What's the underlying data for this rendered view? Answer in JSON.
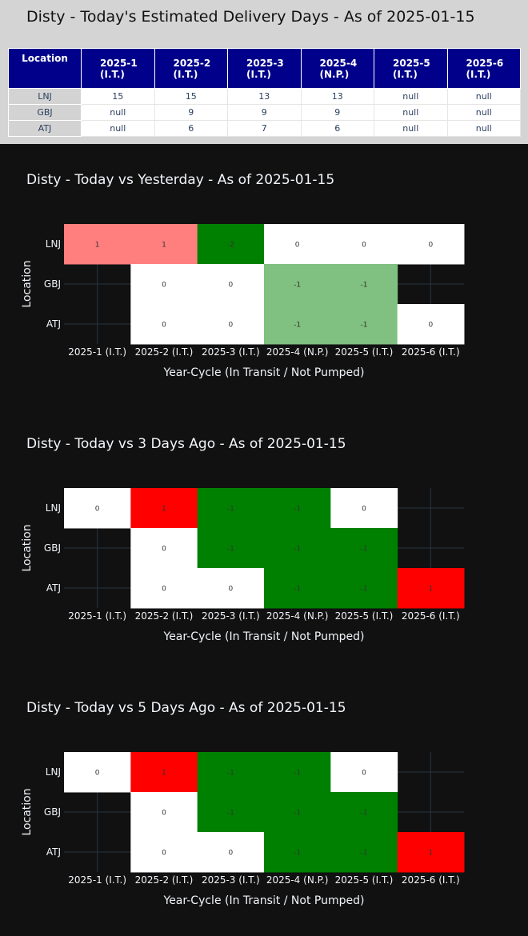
{
  "estimated_table": {
    "title": "Disty - Today's Estimated Delivery Days - As of 2025-01-15",
    "location_header": "Location",
    "columns": [
      {
        "line1": "2025-1",
        "line2": "(I.T.)"
      },
      {
        "line1": "2025-2",
        "line2": "(I.T.)"
      },
      {
        "line1": "2025-3",
        "line2": "(I.T.)"
      },
      {
        "line1": "2025-4",
        "line2": "(N.P.)"
      },
      {
        "line1": "2025-5",
        "line2": "(I.T.)"
      },
      {
        "line1": "2025-6",
        "line2": "(I.T.)"
      }
    ],
    "rows": [
      {
        "location": "LNJ",
        "values": [
          "15",
          "15",
          "13",
          "13",
          "null",
          "null"
        ]
      },
      {
        "location": "GBJ",
        "values": [
          "null",
          "9",
          "9",
          "9",
          "null",
          "null"
        ]
      },
      {
        "location": "ATJ",
        "values": [
          "null",
          "6",
          "7",
          "6",
          "null",
          "null"
        ]
      }
    ]
  },
  "chart_data": [
    {
      "type": "heatmap",
      "title": "Disty - Today vs Yesterday - As of 2025-01-15",
      "xlabel": "Year-Cycle (In Transit / Not Pumped)",
      "ylabel": "Location",
      "x": [
        "2025-1 (I.T.)",
        "2025-2 (I.T.)",
        "2025-3 (I.T.)",
        "2025-4 (N.P.)",
        "2025-5 (I.T.)",
        "2025-6 (I.T.)"
      ],
      "y": [
        "LNJ",
        "GBJ",
        "ATJ"
      ],
      "z": [
        [
          1,
          1,
          -2,
          0,
          0,
          0
        ],
        [
          null,
          0,
          0,
          -1,
          -1,
          null
        ],
        [
          null,
          0,
          0,
          -1,
          -1,
          0
        ]
      ],
      "colors": {
        "2": "#ff0000",
        "1": "#ff7f7f",
        "0": "#ffffff",
        "-1": "#80c080",
        "-2": "#008000"
      },
      "grid": true
    },
    {
      "type": "heatmap",
      "title": "Disty - Today vs 3 Days Ago - As of 2025-01-15",
      "xlabel": "Year-Cycle (In Transit / Not Pumped)",
      "ylabel": "Location",
      "x": [
        "2025-1 (I.T.)",
        "2025-2 (I.T.)",
        "2025-3 (I.T.)",
        "2025-4 (N.P.)",
        "2025-5 (I.T.)",
        "2025-6 (I.T.)"
      ],
      "y": [
        "LNJ",
        "GBJ",
        "ATJ"
      ],
      "z": [
        [
          0,
          1,
          -1,
          -1,
          0,
          null
        ],
        [
          null,
          0,
          -1,
          -1,
          -1,
          null
        ],
        [
          null,
          0,
          0,
          -1,
          -1,
          1
        ]
      ],
      "colors": {
        "1": "#ff0000",
        "0": "#ffffff",
        "-1": "#008000"
      },
      "grid": true
    },
    {
      "type": "heatmap",
      "title": "Disty - Today vs 5 Days Ago - As of 2025-01-15",
      "xlabel": "Year-Cycle (In Transit / Not Pumped)",
      "ylabel": "Location",
      "x": [
        "2025-1 (I.T.)",
        "2025-2 (I.T.)",
        "2025-3 (I.T.)",
        "2025-4 (N.P.)",
        "2025-5 (I.T.)",
        "2025-6 (I.T.)"
      ],
      "y": [
        "LNJ",
        "GBJ",
        "ATJ"
      ],
      "z": [
        [
          0,
          1,
          -1,
          -1,
          0,
          null
        ],
        [
          null,
          0,
          -1,
          -1,
          -1,
          null
        ],
        [
          null,
          0,
          0,
          -1,
          -1,
          1
        ]
      ],
      "colors": {
        "1": "#ff0000",
        "0": "#ffffff",
        "-1": "#008000"
      },
      "grid": true
    }
  ]
}
